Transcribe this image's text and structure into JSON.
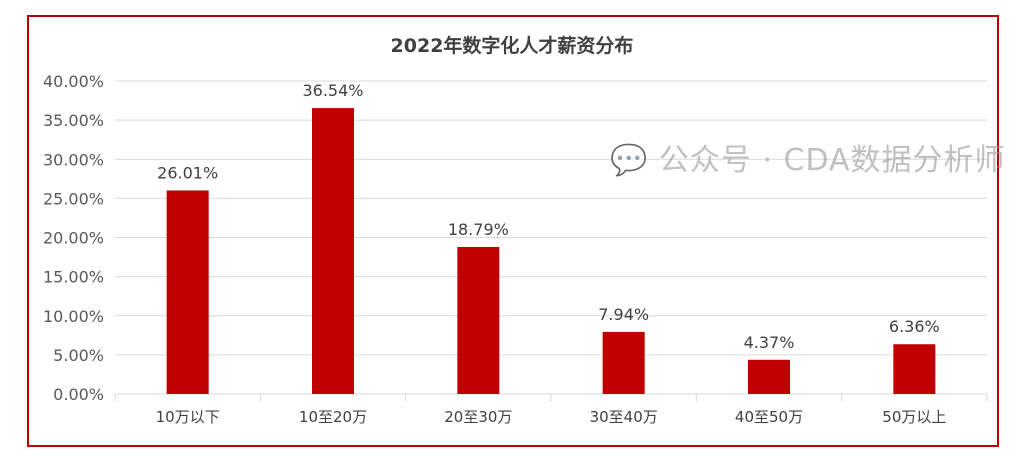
{
  "chart_data": {
    "type": "bar",
    "title": "2022年数字化人才薪资分布",
    "categories": [
      "10万以下",
      "10至20万",
      "20至30万",
      "30至40万",
      "40至50万",
      "50万以上"
    ],
    "values": [
      26.01,
      36.54,
      18.79,
      7.94,
      4.37,
      6.36
    ],
    "data_labels": [
      "26.01%",
      "36.54%",
      "18.79%",
      "7.94%",
      "4.37%",
      "6.36%"
    ],
    "yticks": [
      "0.00%",
      "5.00%",
      "10.00%",
      "15.00%",
      "20.00%",
      "25.00%",
      "30.00%",
      "35.00%",
      "40.00%"
    ],
    "ylim": [
      0,
      40
    ],
    "xlabel": "",
    "ylabel": "",
    "grid": true,
    "bar_color": "#c00000",
    "border_color": "#c00000"
  },
  "watermark": "公众号 · CDA数据分析师"
}
